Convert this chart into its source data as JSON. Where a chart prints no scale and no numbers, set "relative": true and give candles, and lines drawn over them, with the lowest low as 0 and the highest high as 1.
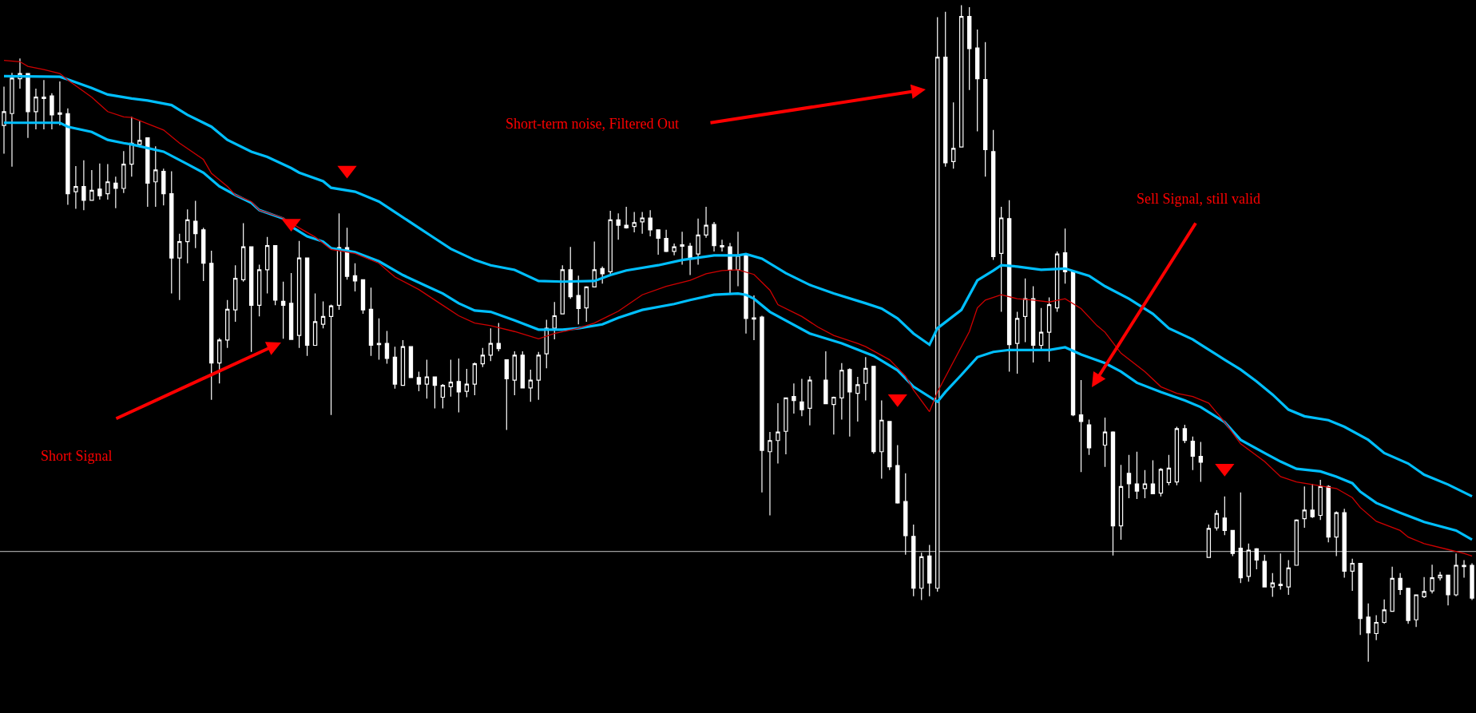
{
  "chart_data": {
    "type": "candlestick",
    "relative": true,
    "color": "#ffffff",
    "categories": [
      null,
      null,
      null,
      null,
      null,
      null,
      null,
      null,
      null,
      null,
      null,
      null,
      null,
      null,
      null,
      null,
      null,
      null,
      null,
      null,
      null,
      null,
      null,
      null,
      null,
      null,
      null,
      null,
      null,
      null,
      null,
      null,
      null,
      null,
      null,
      null,
      null,
      null,
      null,
      null,
      null,
      null,
      null,
      null,
      null,
      null,
      null,
      null,
      null,
      null,
      null,
      null,
      null,
      null,
      null,
      null,
      null,
      null,
      null,
      null,
      null,
      null,
      null,
      null,
      null,
      null,
      null,
      null,
      null,
      null,
      null,
      null,
      null,
      null,
      null,
      null,
      null,
      null,
      null,
      null,
      null,
      null,
      null,
      null,
      null,
      null,
      null,
      null,
      null,
      null,
      null,
      null,
      null,
      null,
      null,
      null,
      null,
      null,
      null,
      null,
      null,
      null,
      null,
      null,
      null,
      null,
      null,
      null,
      null,
      null,
      null,
      null,
      null,
      null,
      null,
      null,
      null,
      null,
      null,
      null,
      null,
      null,
      null,
      null,
      null,
      null,
      null,
      null,
      null,
      null,
      null,
      null,
      null,
      null,
      null,
      null,
      null,
      null,
      null,
      null,
      null,
      null,
      null,
      null,
      null,
      null,
      null,
      null,
      null,
      null,
      null,
      null,
      null,
      null,
      null,
      null,
      null,
      null,
      null,
      null,
      null,
      null,
      null,
      null,
      null,
      null,
      null,
      null,
      null,
      null,
      null,
      null,
      null,
      null,
      null,
      null,
      null,
      null,
      null,
      null,
      null,
      null,
      null,
      null,
      null
    ],
    "ohlc": [
      [
        0.817,
        0.876,
        0.774,
        0.838
      ],
      [
        0.835,
        0.897,
        0.754,
        0.889
      ],
      [
        0.888,
        0.919,
        0.873,
        0.896
      ],
      [
        0.896,
        0.896,
        0.798,
        0.838
      ],
      [
        0.838,
        0.873,
        0.811,
        0.86
      ],
      [
        0.86,
        0.886,
        0.811,
        0.858
      ],
      [
        0.862,
        0.866,
        0.811,
        0.833
      ],
      [
        0.836,
        0.884,
        0.817,
        0.834
      ],
      [
        0.835,
        0.843,
        0.696,
        0.713
      ],
      [
        0.716,
        0.755,
        0.69,
        0.724
      ],
      [
        0.724,
        0.764,
        0.688,
        0.703
      ],
      [
        0.703,
        0.749,
        0.703,
        0.718
      ],
      [
        0.72,
        0.759,
        0.704,
        0.71
      ],
      [
        0.713,
        0.758,
        0.704,
        0.731
      ],
      [
        0.729,
        0.739,
        0.691,
        0.721
      ],
      [
        0.721,
        0.778,
        0.714,
        0.758
      ],
      [
        0.758,
        0.83,
        0.739,
        0.79
      ],
      [
        0.788,
        0.823,
        0.784,
        0.794
      ],
      [
        0.798,
        0.798,
        0.693,
        0.729
      ],
      [
        0.731,
        0.785,
        0.693,
        0.749
      ],
      [
        0.747,
        0.751,
        0.695,
        0.713
      ],
      [
        0.713,
        0.747,
        0.561,
        0.615
      ],
      [
        0.615,
        0.652,
        0.551,
        0.64
      ],
      [
        0.64,
        0.689,
        0.607,
        0.673
      ],
      [
        0.671,
        0.702,
        0.63,
        0.652
      ],
      [
        0.658,
        0.661,
        0.58,
        0.607
      ],
      [
        0.607,
        0.626,
        0.399,
        0.455
      ],
      [
        0.455,
        0.493,
        0.424,
        0.49
      ],
      [
        0.49,
        0.551,
        0.478,
        0.537
      ],
      [
        0.536,
        0.604,
        0.518,
        0.584
      ],
      [
        0.582,
        0.668,
        0.579,
        0.632
      ],
      [
        0.632,
        0.632,
        0.472,
        0.543
      ],
      [
        0.543,
        0.605,
        0.526,
        0.597
      ],
      [
        0.597,
        0.647,
        0.561,
        0.634
      ],
      [
        0.634,
        0.634,
        0.543,
        0.551
      ],
      [
        0.549,
        0.579,
        0.492,
        0.543
      ],
      [
        0.546,
        0.592,
        0.491,
        0.491
      ],
      [
        0.497,
        0.641,
        0.478,
        0.615
      ],
      [
        0.615,
        0.615,
        0.466,
        0.482
      ],
      [
        0.482,
        0.561,
        0.482,
        0.518
      ],
      [
        0.514,
        0.549,
        0.508,
        0.526
      ],
      [
        0.526,
        0.544,
        0.376,
        0.542
      ],
      [
        0.543,
        0.683,
        0.536,
        0.631
      ],
      [
        0.631,
        0.661,
        0.582,
        0.587
      ],
      [
        0.588,
        0.607,
        0.564,
        0.58
      ],
      [
        0.582,
        0.582,
        0.53,
        0.536
      ],
      [
        0.537,
        0.57,
        0.466,
        0.482
      ],
      [
        0.485,
        0.523,
        0.46,
        0.483
      ],
      [
        0.485,
        0.504,
        0.454,
        0.462
      ],
      [
        0.464,
        0.48,
        0.416,
        0.423
      ],
      [
        0.421,
        0.49,
        0.421,
        0.48
      ],
      [
        0.48,
        0.48,
        0.433,
        0.433
      ],
      [
        0.433,
        0.442,
        0.412,
        0.423
      ],
      [
        0.423,
        0.46,
        0.401,
        0.434
      ],
      [
        0.434,
        0.434,
        0.386,
        0.421
      ],
      [
        0.403,
        0.423,
        0.386,
        0.421
      ],
      [
        0.419,
        0.46,
        0.404,
        0.426
      ],
      [
        0.427,
        0.462,
        0.38,
        0.411
      ],
      [
        0.412,
        0.446,
        0.403,
        0.423
      ],
      [
        0.423,
        0.456,
        0.406,
        0.454
      ],
      [
        0.454,
        0.478,
        0.449,
        0.467
      ],
      [
        0.467,
        0.508,
        0.458,
        0.485
      ],
      [
        0.485,
        0.516,
        0.473,
        0.477
      ],
      [
        0.46,
        0.46,
        0.353,
        0.431
      ],
      [
        0.429,
        0.473,
        0.406,
        0.467
      ],
      [
        0.467,
        0.473,
        0.417,
        0.417
      ],
      [
        0.417,
        0.445,
        0.396,
        0.429
      ],
      [
        0.429,
        0.472,
        0.399,
        0.467
      ],
      [
        0.469,
        0.521,
        0.447,
        0.508
      ],
      [
        0.508,
        0.548,
        0.491,
        0.527
      ],
      [
        0.53,
        0.604,
        0.53,
        0.597
      ],
      [
        0.597,
        0.632,
        0.553,
        0.556
      ],
      [
        0.558,
        0.588,
        0.514,
        0.538
      ],
      [
        0.539,
        0.572,
        0.518,
        0.571
      ],
      [
        0.571,
        0.64,
        0.571,
        0.597
      ],
      [
        0.599,
        0.602,
        0.576,
        0.591
      ],
      [
        0.594,
        0.687,
        0.591,
        0.673
      ],
      [
        0.673,
        0.683,
        0.643,
        0.665
      ],
      [
        0.665,
        0.693,
        0.66,
        0.661
      ],
      [
        0.663,
        0.685,
        0.654,
        0.669
      ],
      [
        0.67,
        0.685,
        0.652,
        0.676
      ],
      [
        0.676,
        0.688,
        0.648,
        0.658
      ],
      [
        0.658,
        0.658,
        0.62,
        0.645
      ],
      [
        0.645,
        0.658,
        0.624,
        0.625
      ],
      [
        0.625,
        0.637,
        0.619,
        0.632
      ],
      [
        0.635,
        0.655,
        0.605,
        0.633
      ],
      [
        0.633,
        0.638,
        0.589,
        0.615
      ],
      [
        0.621,
        0.675,
        0.605,
        0.65
      ],
      [
        0.65,
        0.693,
        0.646,
        0.665
      ],
      [
        0.666,
        0.67,
        0.625,
        0.634
      ],
      [
        0.634,
        0.643,
        0.625,
        0.632
      ],
      [
        0.632,
        0.638,
        0.561,
        0.597
      ],
      [
        0.597,
        0.655,
        0.572,
        0.619
      ],
      [
        0.619,
        0.619,
        0.5,
        0.523
      ],
      [
        0.524,
        0.558,
        0.49,
        0.522
      ],
      [
        0.525,
        0.527,
        0.258,
        0.322
      ],
      [
        0.32,
        0.35,
        0.223,
        0.337
      ],
      [
        0.337,
        0.394,
        0.302,
        0.35
      ],
      [
        0.351,
        0.402,
        0.316,
        0.402
      ],
      [
        0.404,
        0.424,
        0.378,
        0.398
      ],
      [
        0.396,
        0.431,
        0.374,
        0.384
      ],
      [
        0.386,
        0.435,
        0.36,
        0.429
      ],
      null,
      [
        0.429,
        0.473,
        0.393,
        0.393
      ],
      [
        0.392,
        0.404,
        0.346,
        0.403
      ],
      [
        0.402,
        0.455,
        0.369,
        0.444
      ],
      [
        0.445,
        0.447,
        0.343,
        0.411
      ],
      [
        0.409,
        0.434,
        0.366,
        0.422
      ],
      [
        0.424,
        0.464,
        0.398,
        0.447
      ],
      [
        0.45,
        0.45,
        0.317,
        0.32
      ],
      [
        0.32,
        0.398,
        0.279,
        0.368
      ],
      [
        0.366,
        0.366,
        0.292,
        0.297
      ],
      [
        0.299,
        0.33,
        0.241,
        0.242
      ],
      [
        0.244,
        0.287,
        0.163,
        0.192
      ],
      [
        0.191,
        0.209,
        0.1,
        0.112
      ],
      [
        0.112,
        0.166,
        0.094,
        0.16
      ],
      [
        0.161,
        0.178,
        0.1,
        0.12
      ],
      [
        0.112,
        0.982,
        0.107,
        0.921
      ],
      [
        0.921,
        0.99,
        0.754,
        0.76
      ],
      [
        0.762,
        0.852,
        0.751,
        0.782
      ],
      [
        0.784,
        1.0,
        0.784,
        0.983
      ],
      [
        0.983,
        0.997,
        0.871,
        0.934
      ],
      [
        0.935,
        0.963,
        0.808,
        0.888
      ],
      [
        0.887,
        0.944,
        0.739,
        0.78
      ],
      [
        0.777,
        0.81,
        0.612,
        0.617
      ],
      [
        0.622,
        0.693,
        0.533,
        0.676
      ],
      [
        0.675,
        0.703,
        0.442,
        0.483
      ],
      [
        0.485,
        0.533,
        0.439,
        0.523
      ],
      [
        0.526,
        0.584,
        0.487,
        0.553
      ],
      [
        0.553,
        0.572,
        0.456,
        0.482
      ],
      [
        0.482,
        0.539,
        0.475,
        0.502
      ],
      [
        0.502,
        0.555,
        0.457,
        0.544
      ],
      [
        0.539,
        0.625,
        0.533,
        0.621
      ],
      [
        0.623,
        0.66,
        0.576,
        0.594
      ],
      [
        0.594,
        0.594,
        0.374,
        0.376
      ],
      [
        0.376,
        0.429,
        0.289,
        0.366
      ],
      [
        0.361,
        0.369,
        0.315,
        0.326
      ],
      null,
      [
        0.33,
        0.372,
        0.297,
        0.35
      ],
      [
        0.35,
        0.351,
        0.162,
        0.207
      ],
      [
        0.207,
        0.3,
        0.186,
        0.267
      ],
      [
        0.287,
        0.315,
        0.249,
        0.271
      ],
      [
        0.271,
        0.32,
        0.248,
        0.26
      ],
      [
        0.264,
        0.292,
        0.249,
        0.271
      ],
      [
        0.271,
        0.307,
        0.256,
        0.256
      ],
      [
        0.257,
        0.295,
        0.252,
        0.293
      ],
      [
        0.273,
        0.315,
        0.269,
        0.295
      ],
      [
        0.274,
        0.358,
        0.269,
        0.355
      ],
      [
        0.355,
        0.361,
        0.333,
        0.337
      ],
      [
        0.336,
        0.343,
        0.292,
        0.313
      ],
      [
        0.313,
        0.335,
        0.274,
        0.304
      ],
      [
        0.159,
        0.209,
        0.159,
        0.203
      ],
      [
        0.204,
        0.231,
        0.2,
        0.226
      ],
      [
        0.219,
        0.252,
        0.193,
        0.2
      ],
      [
        0.2,
        0.2,
        0.161,
        0.165
      ],
      [
        0.173,
        0.258,
        0.12,
        0.128
      ],
      [
        0.13,
        0.18,
        0.122,
        0.17
      ],
      [
        0.172,
        0.173,
        0.141,
        0.155
      ],
      [
        0.153,
        0.163,
        0.114,
        0.114
      ],
      [
        0.114,
        0.135,
        0.099,
        0.12
      ],
      [
        0.118,
        0.165,
        0.11,
        0.116
      ],
      [
        0.114,
        0.155,
        0.102,
        0.143
      ],
      [
        0.147,
        0.217,
        0.147,
        0.216
      ],
      [
        0.218,
        0.267,
        0.204,
        0.231
      ],
      [
        0.231,
        0.271,
        0.219,
        0.221
      ],
      [
        0.223,
        0.277,
        0.216,
        0.267
      ],
      [
        0.267,
        0.269,
        0.182,
        0.19
      ],
      [
        0.19,
        0.229,
        0.161,
        0.227
      ],
      [
        0.227,
        0.233,
        0.128,
        0.138
      ],
      [
        0.138,
        0.157,
        0.108,
        0.15
      ],
      [
        0.15,
        0.15,
        0.041,
        0.066
      ],
      [
        0.068,
        0.089,
        0.0,
        0.044
      ],
      [
        0.043,
        0.071,
        0.033,
        0.06
      ],
      [
        0.06,
        0.095,
        0.058,
        0.079
      ],
      [
        0.077,
        0.145,
        0.077,
        0.127
      ],
      [
        0.127,
        0.135,
        0.102,
        0.11
      ],
      [
        0.112,
        0.112,
        0.058,
        0.063
      ],
      [
        0.064,
        0.102,
        0.053,
        0.102
      ],
      [
        0.099,
        0.129,
        0.097,
        0.107
      ],
      [
        0.108,
        0.148,
        0.104,
        0.128
      ],
      [
        0.128,
        0.137,
        0.124,
        0.132
      ],
      [
        0.132,
        0.132,
        0.086,
        0.102
      ],
      [
        0.102,
        0.165,
        0.1,
        0.147
      ],
      [
        0.145,
        0.155,
        0.128,
        0.147
      ],
      [
        0.147,
        0.15,
        0.094,
        0.097
      ]
    ],
    "series": [
      {
        "type": "line",
        "color": "#00bfff",
        "values": [
          0.892,
          null,
          null,
          null,
          null,
          null,
          null,
          0.891,
          0.887,
          null,
          null,
          0.874,
          null,
          0.864,
          null,
          null,
          0.858,
          null,
          0.855,
          null,
          null,
          0.848,
          null,
          0.833,
          null,
          null,
          0.815,
          null,
          0.795,
          null,
          null,
          0.777,
          null,
          0.769,
          null,
          null,
          0.752,
          0.745,
          null,
          null,
          0.732,
          0.722,
          null,
          null,
          0.716,
          null,
          null,
          0.701,
          null,
          0.685,
          null,
          null,
          0.661,
          null,
          0.645,
          null,
          0.629,
          null,
          null,
          0.612,
          null,
          0.604,
          null,
          null,
          0.597,
          null,
          null,
          0.58,
          null,
          null,
          0.579,
          null,
          null,
          null,
          0.58,
          null,
          0.589,
          null,
          0.596,
          null,
          null,
          null,
          0.604,
          null,
          null,
          0.612,
          null,
          null,
          null,
          0.619,
          null,
          null,
          0.619,
          0.621,
          null,
          0.614,
          null,
          null,
          0.592,
          null,
          null,
          0.574,
          null,
          null,
          0.561,
          null,
          null,
          null,
          0.546,
          null,
          0.538,
          null,
          0.523,
          null,
          0.5,
          null,
          0.483,
          0.508,
          null,
          null,
          0.536,
          null,
          0.581,
          null,
          0.596,
          0.604,
          null,
          0.602,
          null,
          null,
          0.597,
          null,
          null,
          0.599,
          null,
          null,
          0.588,
          null,
          0.572,
          null,
          null,
          0.553,
          null,
          null,
          0.53,
          null,
          0.508,
          null,
          null,
          0.491,
          0.483,
          null,
          null,
          0.46,
          null,
          0.445,
          null,
          0.427,
          null,
          0.407,
          null,
          0.384,
          null,
          0.374,
          null,
          null,
          0.368,
          null,
          0.358,
          null,
          null,
          0.338,
          null,
          0.318,
          null,
          null,
          0.302,
          null,
          0.285,
          null,
          null,
          0.27,
          null,
          null,
          0.252
        ]
      },
      {
        "type": "line",
        "color": "#00bfff",
        "values": [
          0.821,
          null,
          null,
          null,
          null,
          null,
          null,
          0.821,
          0.815,
          null,
          null,
          0.807,
          null,
          0.795,
          null,
          0.79,
          0.788,
          null,
          null,
          null,
          0.777,
          null,
          null,
          0.758,
          null,
          0.745,
          null,
          0.724,
          null,
          0.711,
          null,
          0.699,
          0.688,
          null,
          null,
          0.675,
          0.663,
          null,
          0.648,
          null,
          0.64,
          0.63,
          null,
          null,
          0.624,
          null,
          null,
          0.61,
          null,
          null,
          0.589,
          null,
          null,
          0.572,
          null,
          0.561,
          null,
          0.546,
          null,
          0.535,
          null,
          0.533,
          null,
          null,
          0.52,
          null,
          null,
          0.506,
          null,
          null,
          0.506,
          null,
          0.508,
          null,
          null,
          0.514,
          null,
          0.524,
          null,
          null,
          0.536,
          null,
          null,
          null,
          0.545,
          null,
          0.551,
          null,
          null,
          0.559,
          null,
          null,
          0.561,
          0.559,
          0.553,
          null,
          0.533,
          null,
          null,
          null,
          null,
          0.5,
          null,
          null,
          null,
          0.485,
          null,
          null,
          null,
          0.466,
          null,
          null,
          0.444,
          null,
          0.419,
          null,
          null,
          0.396,
          0.411,
          null,
          0.437,
          null,
          0.464,
          null,
          0.472,
          null,
          0.475,
          null,
          0.475,
          null,
          null,
          0.475,
          null,
          0.479,
          null,
          0.468,
          null,
          null,
          0.455,
          null,
          0.442,
          null,
          0.425,
          null,
          null,
          0.411,
          null,
          null,
          0.398,
          null,
          0.388,
          null,
          null,
          0.365,
          null,
          0.338,
          null,
          null,
          0.318,
          null,
          0.305,
          null,
          0.294,
          null,
          null,
          0.29,
          null,
          0.282,
          null,
          0.272,
          0.259,
          null,
          0.242,
          null,
          null,
          0.227,
          null,
          null,
          0.213,
          null,
          null,
          null,
          0.2,
          null,
          0.186
        ]
      },
      {
        "type": "line",
        "color": "#d00000",
        "values": [
          0.916,
          null,
          0.914,
          0.907,
          null,
          0.902,
          null,
          0.896,
          0.886,
          null,
          null,
          0.86,
          null,
          0.838,
          null,
          0.83,
          0.829,
          null,
          null,
          null,
          0.81,
          null,
          0.79,
          null,
          null,
          0.765,
          0.744,
          null,
          0.724,
          0.711,
          null,
          0.701,
          0.688,
          null,
          null,
          0.676,
          null,
          0.661,
          null,
          0.647,
          null,
          0.628,
          null,
          null,
          0.622,
          null,
          null,
          0.607,
          null,
          0.586,
          null,
          null,
          0.567,
          null,
          null,
          0.543,
          null,
          0.527,
          null,
          0.516,
          null,
          0.512,
          null,
          null,
          0.503,
          null,
          null,
          0.492,
          null,
          0.5,
          null,
          null,
          0.508,
          null,
          0.516,
          null,
          null,
          0.534,
          null,
          null,
          0.559,
          null,
          null,
          0.572,
          null,
          null,
          0.581,
          null,
          0.591,
          null,
          0.596,
          null,
          0.597,
          null,
          0.59,
          null,
          0.566,
          0.544,
          null,
          null,
          0.526,
          null,
          0.51,
          null,
          0.497,
          null,
          null,
          0.485,
          0.48,
          null,
          null,
          0.46,
          null,
          0.435,
          0.414,
          null,
          0.381,
          0.411,
          0.434,
          null,
          null,
          0.503,
          0.539,
          0.551,
          null,
          0.559,
          null,
          0.553,
          null,
          0.551,
          null,
          0.548,
          null,
          0.553,
          null,
          0.538,
          null,
          0.512,
          0.502,
          null,
          0.47,
          null,
          null,
          0.442,
          null,
          0.419,
          null,
          0.409,
          null,
          0.404,
          null,
          0.394,
          null,
          0.365,
          null,
          0.332,
          null,
          null,
          0.305,
          null,
          0.282,
          null,
          0.274,
          null,
          0.27,
          null,
          null,
          0.264,
          null,
          0.25,
          0.235,
          null,
          0.214,
          null,
          null,
          0.2,
          0.19,
          null,
          0.18,
          null,
          null,
          0.171,
          null,
          0.165,
          0.161
        ]
      },
      {
        "type": "scatter",
        "color": "#ff0000",
        "marker": "triangle",
        "values": [
          null,
          null,
          null,
          null,
          null,
          null,
          null,
          null,
          null,
          null,
          null,
          null,
          null,
          null,
          null,
          null,
          null,
          null,
          null,
          null,
          null,
          null,
          null,
          null,
          null,
          null,
          null,
          null,
          null,
          null,
          null,
          null,
          null,
          null,
          null,
          null,
          0.668,
          null,
          null,
          null,
          null,
          null,
          null,
          0.749,
          null,
          null,
          null,
          null,
          null,
          null,
          null,
          null,
          null,
          null,
          null,
          null,
          null,
          null,
          null,
          null,
          null,
          null,
          null,
          null,
          null,
          null,
          null,
          null,
          null,
          null,
          null,
          null,
          null,
          null,
          null,
          null,
          null,
          null,
          null,
          null,
          null,
          null,
          null,
          null,
          null,
          null,
          null,
          null,
          null,
          null,
          null,
          null,
          null,
          null,
          null,
          null,
          null,
          null,
          null,
          null,
          null,
          null,
          null,
          null,
          null,
          null,
          null,
          null,
          null,
          null,
          null,
          null,
          0.401,
          null,
          null,
          null,
          null,
          null,
          null,
          null,
          null,
          null,
          null,
          null,
          null,
          null,
          null,
          null,
          null,
          null,
          null,
          null,
          null,
          null,
          null,
          null,
          null,
          null,
          null,
          null,
          null,
          null,
          null,
          null,
          null,
          null,
          null,
          null,
          null,
          null,
          null,
          null,
          null,
          0.295,
          null,
          null,
          null,
          null,
          null,
          null,
          null,
          null,
          null,
          null,
          null,
          null,
          null,
          null,
          null,
          null,
          null,
          null,
          null,
          null,
          null,
          null,
          null,
          null,
          null,
          null,
          null,
          null,
          null,
          null,
          null
        ]
      }
    ],
    "ref_lines": [
      {
        "axis": "y",
        "value": 0.168,
        "color": "#c8c8c8"
      }
    ],
    "annotations": [
      "Short Signal",
      "Short-term noise, Filtered Out",
      "Sell Signal, still valid"
    ]
  }
}
